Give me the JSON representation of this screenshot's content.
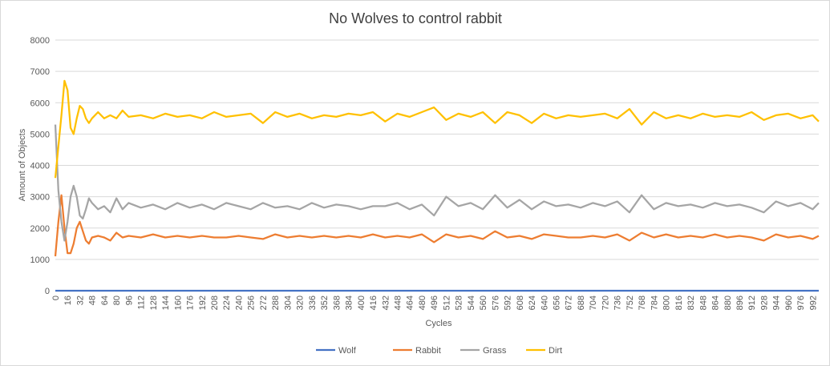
{
  "chart_data": {
    "type": "line",
    "title": "No Wolves to control rabbit",
    "xlabel": "Cycles",
    "ylabel": "Amount of Objects",
    "ylim": [
      0,
      8000
    ],
    "yticks": [
      0,
      1000,
      2000,
      3000,
      4000,
      5000,
      6000,
      7000,
      8000
    ],
    "xlim": [
      0,
      1000
    ],
    "xtick_step": 16,
    "grid": true,
    "legend_position": "bottom",
    "series": [
      {
        "name": "Wolf",
        "color": "#4472C4",
        "x": [
          0,
          1000
        ],
        "values": [
          0,
          0
        ]
      },
      {
        "name": "Rabbit",
        "color": "#ED7D31",
        "x": [
          0,
          4,
          8,
          12,
          16,
          20,
          24,
          28,
          32,
          36,
          40,
          44,
          48,
          56,
          64,
          72,
          80,
          88,
          96,
          112,
          128,
          144,
          160,
          176,
          192,
          208,
          224,
          240,
          256,
          272,
          288,
          304,
          320,
          336,
          352,
          368,
          384,
          400,
          416,
          432,
          448,
          464,
          480,
          496,
          512,
          528,
          544,
          560,
          576,
          592,
          608,
          624,
          640,
          656,
          672,
          688,
          704,
          720,
          736,
          752,
          768,
          784,
          800,
          816,
          832,
          848,
          864,
          880,
          896,
          912,
          928,
          944,
          960,
          976,
          992,
          1000
        ],
        "values": [
          1100,
          2200,
          3050,
          2000,
          1200,
          1200,
          1500,
          2000,
          2200,
          1900,
          1600,
          1500,
          1700,
          1750,
          1700,
          1600,
          1850,
          1700,
          1750,
          1700,
          1800,
          1700,
          1750,
          1700,
          1750,
          1700,
          1700,
          1750,
          1700,
          1650,
          1800,
          1700,
          1750,
          1700,
          1750,
          1700,
          1750,
          1700,
          1800,
          1700,
          1750,
          1700,
          1800,
          1550,
          1800,
          1700,
          1750,
          1650,
          1900,
          1700,
          1750,
          1650,
          1800,
          1750,
          1700,
          1700,
          1750,
          1700,
          1800,
          1600,
          1850,
          1700,
          1800,
          1700,
          1750,
          1700,
          1800,
          1700,
          1750,
          1700,
          1600,
          1800,
          1700,
          1750,
          1650,
          1750
        ]
      },
      {
        "name": "Grass",
        "color": "#A5A5A5",
        "x": [
          0,
          4,
          8,
          12,
          16,
          20,
          24,
          28,
          32,
          36,
          40,
          44,
          48,
          56,
          64,
          72,
          80,
          88,
          96,
          112,
          128,
          144,
          160,
          176,
          192,
          208,
          224,
          240,
          256,
          272,
          288,
          304,
          320,
          336,
          352,
          368,
          384,
          400,
          416,
          432,
          448,
          464,
          480,
          496,
          512,
          528,
          544,
          560,
          576,
          592,
          608,
          624,
          640,
          656,
          672,
          688,
          704,
          720,
          736,
          752,
          768,
          784,
          800,
          816,
          832,
          848,
          864,
          880,
          896,
          912,
          928,
          944,
          960,
          976,
          992,
          1000
        ],
        "values": [
          5300,
          3200,
          2200,
          1600,
          2200,
          3000,
          3350,
          3000,
          2400,
          2300,
          2600,
          2950,
          2800,
          2600,
          2700,
          2500,
          2950,
          2600,
          2800,
          2650,
          2750,
          2600,
          2800,
          2650,
          2750,
          2600,
          2800,
          2700,
          2600,
          2800,
          2650,
          2700,
          2600,
          2800,
          2650,
          2750,
          2700,
          2600,
          2700,
          2700,
          2800,
          2600,
          2750,
          2400,
          3000,
          2700,
          2800,
          2600,
          3050,
          2650,
          2900,
          2600,
          2850,
          2700,
          2750,
          2650,
          2800,
          2700,
          2850,
          2500,
          3050,
          2600,
          2800,
          2700,
          2750,
          2650,
          2800,
          2700,
          2750,
          2650,
          2500,
          2850,
          2700,
          2800,
          2600,
          2800
        ]
      },
      {
        "name": "Dirt",
        "color": "#FFC000",
        "x": [
          0,
          4,
          8,
          12,
          16,
          20,
          24,
          28,
          32,
          36,
          40,
          44,
          48,
          56,
          64,
          72,
          80,
          88,
          96,
          112,
          128,
          144,
          160,
          176,
          192,
          208,
          224,
          240,
          256,
          272,
          288,
          304,
          320,
          336,
          352,
          368,
          384,
          400,
          416,
          432,
          448,
          464,
          480,
          496,
          512,
          528,
          544,
          560,
          576,
          592,
          608,
          624,
          640,
          656,
          672,
          688,
          704,
          720,
          736,
          752,
          768,
          784,
          800,
          816,
          832,
          848,
          864,
          880,
          896,
          912,
          928,
          944,
          960,
          976,
          992,
          1000
        ],
        "values": [
          3600,
          4600,
          5600,
          6700,
          6400,
          5200,
          5000,
          5500,
          5900,
          5800,
          5500,
          5350,
          5500,
          5700,
          5500,
          5600,
          5500,
          5750,
          5550,
          5600,
          5500,
          5650,
          5550,
          5600,
          5500,
          5700,
          5550,
          5600,
          5650,
          5350,
          5700,
          5550,
          5650,
          5500,
          5600,
          5550,
          5650,
          5600,
          5700,
          5400,
          5650,
          5550,
          5700,
          5850,
          5450,
          5650,
          5550,
          5700,
          5350,
          5700,
          5600,
          5350,
          5650,
          5500,
          5600,
          5550,
          5600,
          5650,
          5500,
          5800,
          5300,
          5700,
          5500,
          5600,
          5500,
          5650,
          5550,
          5600,
          5550,
          5700,
          5450,
          5600,
          5650,
          5500,
          5600,
          5400
        ]
      }
    ]
  }
}
